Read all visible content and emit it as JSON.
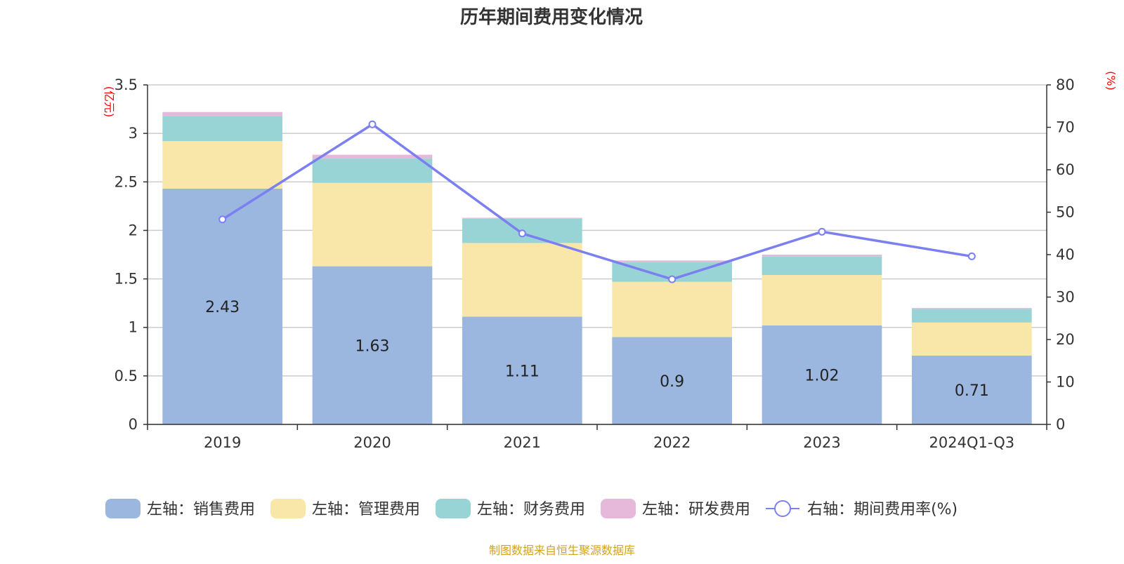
{
  "chart_data": {
    "type": "bar",
    "title": "历年期间费用变化情况",
    "categories": [
      "2019",
      "2020",
      "2021",
      "2022",
      "2023",
      "2024Q1-Q3"
    ],
    "y_left": {
      "unit": "(亿元)",
      "range": [
        0,
        3.5
      ],
      "ticks": [
        "0",
        "0.5",
        "1",
        "1.5",
        "2",
        "2.5",
        "3",
        "3.5"
      ]
    },
    "y_right": {
      "unit": "(%)",
      "range": [
        0,
        80
      ],
      "ticks": [
        "0",
        "10",
        "20",
        "30",
        "40",
        "50",
        "60",
        "70",
        "80"
      ]
    },
    "grid": true,
    "legend_position": "bottom",
    "series": [
      {
        "name": "左轴：销售费用",
        "axis": "left",
        "color": "#9bb7e0",
        "values": [
          2.43,
          1.63,
          1.11,
          0.9,
          1.02,
          0.71
        ],
        "labels": [
          "2.43",
          "1.63",
          "1.11",
          "0.9",
          "1.02",
          "0.71"
        ]
      },
      {
        "name": "左轴：管理费用",
        "axis": "left",
        "color": "#f8e7a8",
        "values": [
          0.49,
          0.86,
          0.76,
          0.57,
          0.52,
          0.34
        ]
      },
      {
        "name": "左轴：财务费用",
        "axis": "left",
        "color": "#98d4d5",
        "values": [
          0.26,
          0.25,
          0.25,
          0.2,
          0.19,
          0.14
        ]
      },
      {
        "name": "左轴：研发费用",
        "axis": "left",
        "color": "#e6b8da",
        "values": [
          0.04,
          0.04,
          0.01,
          0.02,
          0.02,
          0.01
        ]
      },
      {
        "name": "右轴：期间费用率(%)",
        "axis": "right",
        "type": "line",
        "color": "#7b7ff0",
        "values": [
          48.3,
          70.7,
          45.0,
          34.2,
          45.4,
          39.6
        ]
      }
    ],
    "source": "制图数据来自恒生聚源数据库"
  }
}
